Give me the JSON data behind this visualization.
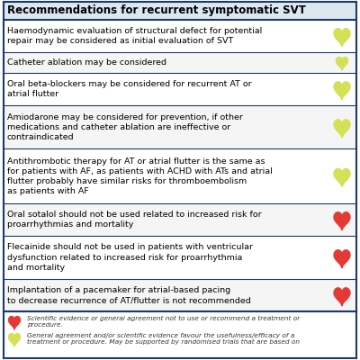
{
  "title": "Recommendations for recurrent symptomatic SVT",
  "rows": [
    {
      "text": "Haemodynamic evaluation of structural defect for potential\nrepair may be considered as initial evaluation of SVT",
      "heart_color": "#d4e157",
      "lines": 2
    },
    {
      "text": "Catheter ablation may be considered",
      "heart_color": "#d4e157",
      "lines": 1
    },
    {
      "text": "Oral beta-blockers may be considered for recurrent AT or\natrial flutter",
      "heart_color": "#d4e157",
      "lines": 2
    },
    {
      "text": "Amiodarone may be considered for prevention, if other\nmedications and catheter ablation are ineffective or\ncontraindicated",
      "heart_color": "#d4e157",
      "lines": 3
    },
    {
      "text": "Antithrombotic therapy for AT or atrial flutter is the same as\nfor patients with AF, as patients with ACHD with ATs and atrial\nflutter probably have similar risks for thromboembolism\nas patients with AF",
      "heart_color": "#d4e157",
      "lines": 4
    },
    {
      "text": "Oral sotalol should not be used related to increased risk for\nproarrhythmias and mortality",
      "heart_color": "#e53935",
      "lines": 2
    },
    {
      "text": "Flecainide should not be used in patients with ventricular\ndysfunction related to increased risk for proarrhythmia\nand mortality",
      "heart_color": "#e53935",
      "lines": 3
    },
    {
      "text": "Implantation of a pacemaker for atrial-based pacing\nto decrease recurrence of AT/flutter is not recommended",
      "heart_color": "#e53935",
      "lines": 2
    }
  ],
  "legend": [
    {
      "color": "#e53935",
      "text": "Scientific evidence or general agreement not to use or recommend a treatment or\nprocedure."
    },
    {
      "color": "#d4e157",
      "text": "General agreement and/or scientific evidence favour the usefulness/efficacy of a\ntreatment or procedure. May be supported by randomised trials that are based on"
    }
  ],
  "border_color": "#1a3a6b",
  "title_color": "#000000",
  "text_color": "#000000",
  "font_size": 6.8,
  "title_font_size": 8.5
}
